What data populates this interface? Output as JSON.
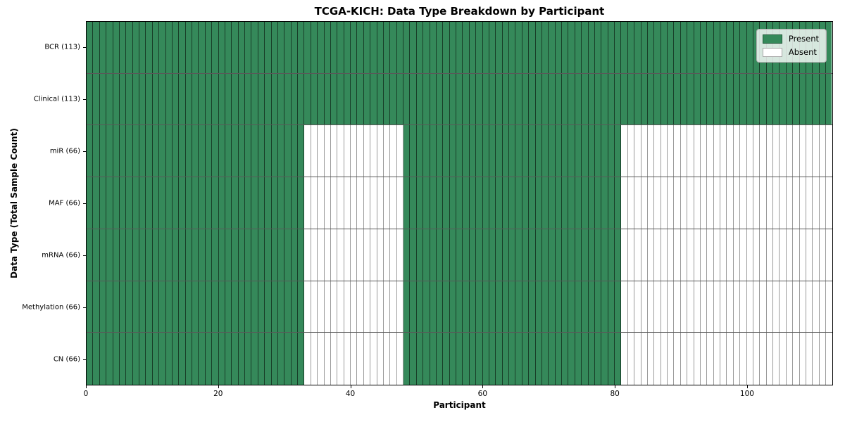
{
  "chart_data": {
    "type": "heatmap",
    "title": "TCGA-KICH: Data Type Breakdown by Participant",
    "xlabel": "Participant",
    "ylabel": "Data Type (Total Sample Count)",
    "x_range": [
      0,
      113
    ],
    "x_ticks": [
      0,
      20,
      40,
      60,
      80,
      100
    ],
    "n_participants": 113,
    "grid": "cell-borders-on",
    "legend_position": "upper-right",
    "colors": {
      "present": "#35895a",
      "absent": "#ffffff",
      "cell_edge": "#2a2a2a"
    },
    "legend": [
      {
        "label": "Present",
        "key": "present"
      },
      {
        "label": "Absent",
        "key": "absent"
      }
    ],
    "rows": [
      {
        "label": "BCR (113)",
        "total_samples": 113,
        "present_segments": [
          [
            0,
            113
          ]
        ]
      },
      {
        "label": "Clinical (113)",
        "total_samples": 113,
        "present_segments": [
          [
            0,
            113
          ]
        ]
      },
      {
        "label": "miR (66)",
        "total_samples": 66,
        "present_segments": [
          [
            0,
            33
          ],
          [
            48,
            81
          ]
        ]
      },
      {
        "label": "MAF (66)",
        "total_samples": 66,
        "present_segments": [
          [
            0,
            33
          ],
          [
            48,
            81
          ]
        ]
      },
      {
        "label": "mRNA (66)",
        "total_samples": 66,
        "present_segments": [
          [
            0,
            33
          ],
          [
            48,
            81
          ]
        ]
      },
      {
        "label": "Methylation (66)",
        "total_samples": 66,
        "present_segments": [
          [
            0,
            33
          ],
          [
            48,
            81
          ]
        ]
      },
      {
        "label": "CN (66)",
        "total_samples": 66,
        "present_segments": [
          [
            0,
            33
          ],
          [
            48,
            81
          ]
        ]
      }
    ]
  }
}
